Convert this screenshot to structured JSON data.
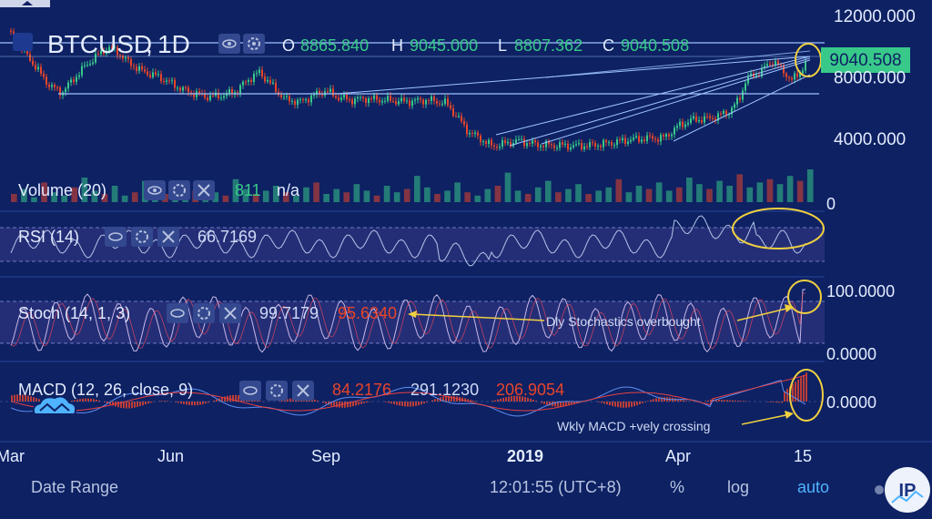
{
  "chart_data": {
    "type": "candlestick",
    "symbol": "BTCUSD",
    "interval": "1D",
    "ohlc": {
      "open_label": "O",
      "open": "8865.840",
      "high_label": "H",
      "high": "9045.000",
      "low_label": "L",
      "low": "8807.362",
      "close_label": "C",
      "close": "9040.508"
    },
    "last_price": "9040.508",
    "y_ticks": [
      "12000.000",
      "8000.000",
      "4000.000"
    ],
    "y_tick_values": [
      12000,
      8000,
      4000
    ],
    "x_ticks": [
      "Mar",
      "Jun",
      "Sep",
      "2019",
      "Apr",
      "15"
    ],
    "price_path": [
      [
        0,
        11000
      ],
      [
        8,
        11200
      ],
      [
        18,
        10200
      ],
      [
        30,
        9400
      ],
      [
        42,
        8400
      ],
      [
        55,
        7400
      ],
      [
        68,
        7000
      ],
      [
        80,
        7800
      ],
      [
        92,
        8600
      ],
      [
        105,
        9300
      ],
      [
        118,
        9900
      ],
      [
        128,
        9700
      ],
      [
        140,
        9000
      ],
      [
        155,
        8400
      ],
      [
        170,
        8100
      ],
      [
        185,
        7700
      ],
      [
        200,
        7200
      ],
      [
        215,
        6900
      ],
      [
        230,
        6700
      ],
      [
        245,
        6800
      ],
      [
        260,
        7100
      ],
      [
        272,
        7800
      ],
      [
        285,
        8300
      ],
      [
        295,
        7700
      ],
      [
        305,
        7000
      ],
      [
        315,
        6500
      ],
      [
        330,
        6400
      ],
      [
        345,
        6800
      ],
      [
        358,
        7100
      ],
      [
        370,
        6700
      ],
      [
        385,
        6500
      ],
      [
        400,
        6600
      ],
      [
        420,
        6500
      ],
      [
        445,
        6400
      ],
      [
        470,
        6500
      ],
      [
        490,
        6300
      ],
      [
        505,
        5200
      ],
      [
        515,
        4400
      ],
      [
        525,
        4100
      ],
      [
        540,
        3500
      ],
      [
        555,
        3650
      ],
      [
        570,
        3850
      ],
      [
        590,
        3600
      ],
      [
        610,
        3550
      ],
      [
        630,
        3500
      ],
      [
        650,
        3550
      ],
      [
        670,
        3700
      ],
      [
        690,
        3900
      ],
      [
        710,
        4000
      ],
      [
        730,
        4050
      ],
      [
        745,
        4800
      ],
      [
        760,
        5200
      ],
      [
        780,
        5300
      ],
      [
        800,
        5700
      ],
      [
        812,
        6500
      ],
      [
        820,
        7900
      ],
      [
        830,
        8100
      ],
      [
        840,
        8600
      ],
      [
        850,
        9100
      ],
      [
        860,
        8400
      ],
      [
        870,
        7800
      ],
      [
        878,
        8200
      ],
      [
        886,
        9040
      ]
    ],
    "volume_path": [
      5,
      8,
      3,
      12,
      6,
      4,
      9,
      15,
      7,
      5,
      10,
      4,
      6,
      13,
      8,
      5,
      3,
      11,
      7,
      9,
      6,
      4,
      14,
      8,
      5,
      7,
      10,
      6,
      4,
      9,
      12,
      5,
      8,
      6,
      11,
      7,
      4,
      10,
      6,
      8,
      16,
      9,
      5,
      7,
      12,
      6,
      4,
      8,
      10,
      18,
      7,
      5,
      9,
      13,
      6,
      8,
      11,
      5,
      7,
      9,
      14,
      6,
      10,
      8,
      12,
      7,
      9,
      15,
      11,
      8,
      13,
      10,
      17,
      9,
      12,
      14,
      11,
      16,
      13,
      20
    ],
    "rsi": {
      "label": "RSI (14)",
      "value": "66.7169"
    },
    "stoch": {
      "label": "Stoch (14, 1, 3)",
      "k": "99.7179",
      "d": "95.6340",
      "ticks": [
        "100.0000",
        "0.0000"
      ]
    },
    "macd": {
      "label": "MACD (12, 26, close, 9)",
      "hist": "84.2176",
      "macd": "291.1230",
      "signal": "206.9054",
      "tick": "0.0000"
    },
    "volume": {
      "label": "Volume (20)",
      "value": "811",
      "unit": "n/a",
      "tick": "0"
    },
    "annotations": {
      "stoch_note": "Dly Stochastics overbought",
      "macd_note": "Wkly MACD +vely crossing"
    },
    "colors": {
      "bg": "#0d2163",
      "up": "#38c98a",
      "down": "#e8452a",
      "line": "#9fc4ff",
      "highlight": "#f0d040",
      "grid": "#5a6ea5",
      "panel": "#29307a"
    }
  },
  "footer": {
    "date_range": "Date Range",
    "time": "12:01:55 (UTC+8)",
    "percent": "%",
    "log": "log",
    "auto": "auto"
  },
  "icons": [
    "eye-icon",
    "gear-icon",
    "close-icon",
    "cloud-icon",
    "logo-icon"
  ]
}
